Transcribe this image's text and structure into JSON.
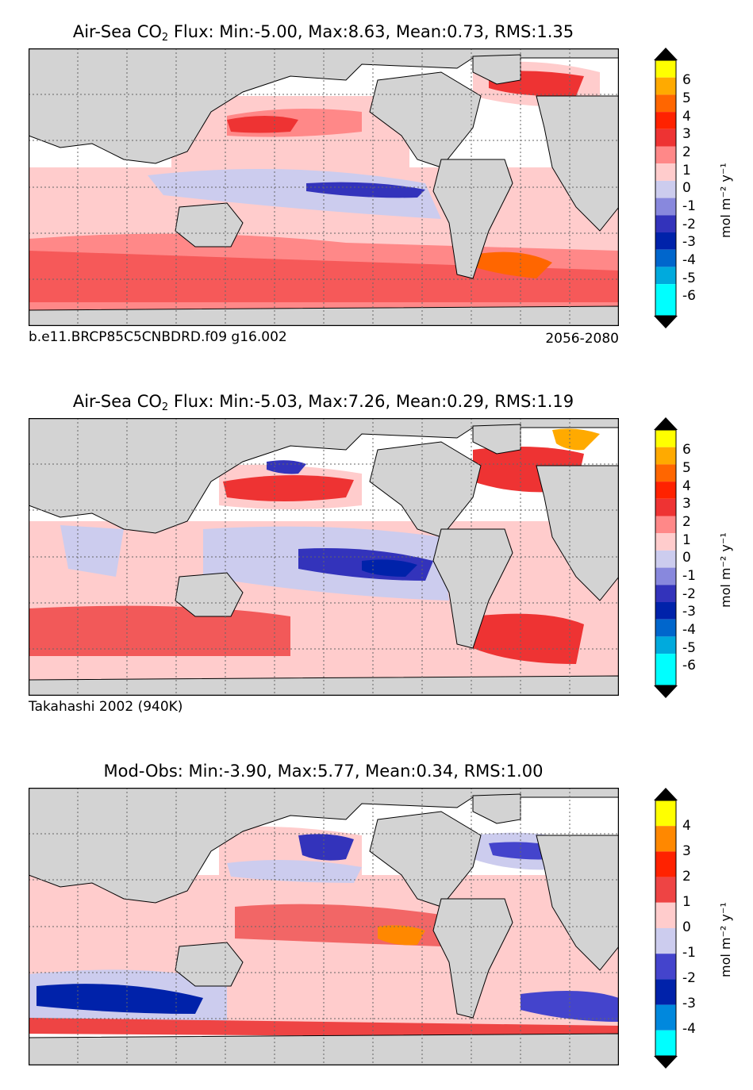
{
  "panels": [
    {
      "title_prefix": "Air-Sea CO",
      "title_sub": "2",
      "title_suffix": " Flux: Min:-5.00, Max:8.63, Mean:0.73, RMS:1.35",
      "caption_left": "b.e11.BRCP85C5CNBDRD.f09 g16.002",
      "caption_right": "2056-2080",
      "colorbar_ticks": [
        "6",
        "5",
        "4",
        "3",
        "2",
        "1",
        "0",
        "-1",
        "-2",
        "-3",
        "-4",
        "-5",
        "-6"
      ],
      "colorbar_label": "mol m⁻² y⁻¹"
    },
    {
      "title_prefix": "Air-Sea CO",
      "title_sub": "2",
      "title_suffix": " Flux: Min:-5.03, Max:7.26, Mean:0.29, RMS:1.19",
      "caption_left": "Takahashi 2002 (940K)",
      "caption_right": "",
      "colorbar_ticks": [
        "6",
        "5",
        "4",
        "3",
        "2",
        "1",
        "0",
        "-1",
        "-2",
        "-3",
        "-4",
        "-5",
        "-6"
      ],
      "colorbar_label": "mol m⁻² y⁻¹"
    },
    {
      "title_prefix": "Mod-Obs: Min:-3.90, Max:5.77, Mean:0.34, RMS:1.00",
      "title_sub": "",
      "title_suffix": "",
      "caption_left": "",
      "caption_right": "",
      "colorbar_ticks": [
        "4",
        "3",
        "2",
        "1",
        "0",
        "-1",
        "-2",
        "-3",
        "-4"
      ],
      "colorbar_label": "mol m⁻² y⁻¹"
    }
  ],
  "colors": {
    "land": "#d3d3d3",
    "cb13": [
      "#ffff00",
      "#ffaa00",
      "#ff6600",
      "#ff2200",
      "#ee3333",
      "#ff8888",
      "#ffcccc",
      "#ccccee",
      "#8888dd",
      "#3333bb",
      "#0022aa",
      "#0066cc",
      "#00aadd",
      "#00ffff"
    ],
    "cb9": [
      "#ffff00",
      "#ff8800",
      "#ff2200",
      "#ee4444",
      "#ffcccc",
      "#ccccee",
      "#4444cc",
      "#0022aa",
      "#0088dd",
      "#00ffff"
    ]
  }
}
